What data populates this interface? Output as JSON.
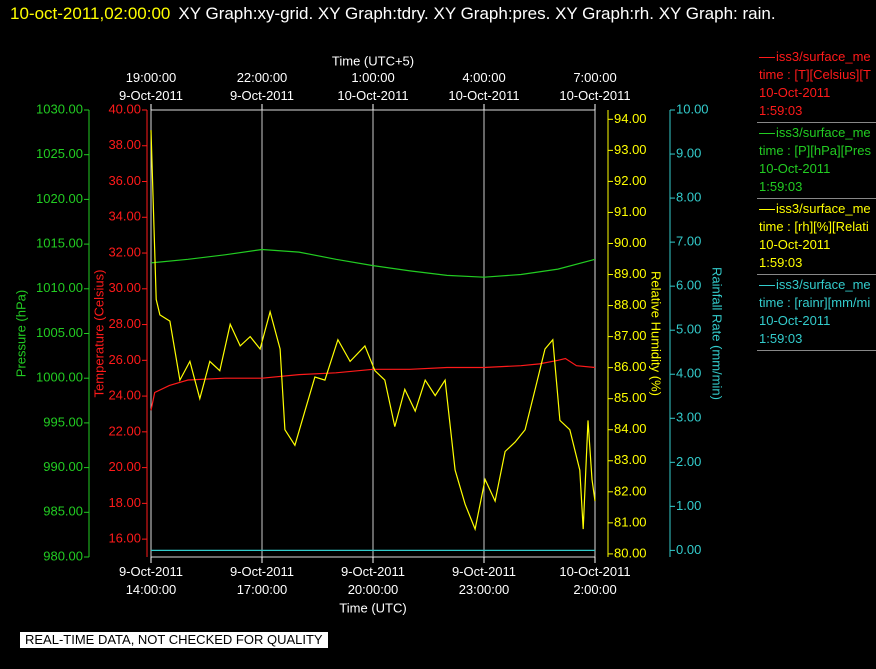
{
  "chart_data": {
    "type": "line",
    "timestamp": "10-oct-2011,02:00:00",
    "title": "XY Graph:xy-grid.  XY Graph:tdry.  XY Graph:pres.  XY Graph:rh.  XY Graph: rain.",
    "xlabel": "Time (UTC)",
    "x2label": "Time (UTC+5)",
    "xlim": [
      14,
      26
    ],
    "xticks": [
      {
        "value": 14,
        "label": "9-Oct-2011 14:00:00"
      },
      {
        "value": 17,
        "label": "9-Oct-2011 17:00:00"
      },
      {
        "value": 20,
        "label": "9-Oct-2011 20:00:00"
      },
      {
        "value": 23,
        "label": "9-Oct-2011 23:00:00"
      },
      {
        "value": 26,
        "label": "10-Oct-2011 2:00:00"
      }
    ],
    "x2ticks": [
      {
        "value": 14,
        "label": "19:00:00 9-Oct-2011"
      },
      {
        "value": 17,
        "label": "22:00:00 9-Oct-2011"
      },
      {
        "value": 20,
        "label": "1:00:00 10-Oct-2011"
      },
      {
        "value": 23,
        "label": "4:00:00 10-Oct-2011"
      },
      {
        "value": 26,
        "label": "7:00:00 10-Oct-2011"
      }
    ],
    "grid": true,
    "series": [
      {
        "name": "iss3/surface_me",
        "legend_detail": "time : [T][Celsius][T",
        "legend_date": "10-Oct-2011",
        "legend_time": "1:59:03",
        "color": "#ff1a1a",
        "ylabel": "Temperature (Celsius)",
        "ylim": [
          15,
          40
        ],
        "yticks": [
          {
            "value": 16,
            "label": "16.00"
          },
          {
            "value": 18,
            "label": "18.00"
          },
          {
            "value": 20,
            "label": "20.00"
          },
          {
            "value": 22,
            "label": "22.00"
          },
          {
            "value": 24,
            "label": "24.00"
          },
          {
            "value": 26,
            "label": "26.00"
          },
          {
            "value": 28,
            "label": "28.00"
          },
          {
            "value": 30,
            "label": "30.00"
          },
          {
            "value": 32,
            "label": "32.00"
          },
          {
            "value": 34,
            "label": "34.00"
          },
          {
            "value": 36,
            "label": "36.00"
          },
          {
            "value": 38,
            "label": "38.00"
          },
          {
            "value": 40,
            "label": "40.00"
          }
        ],
        "x": [
          14,
          14.1,
          14.5,
          15,
          16,
          17,
          18,
          19,
          20,
          21,
          22,
          23,
          24,
          24.5,
          25,
          25.2,
          25.5,
          26
        ],
        "values": [
          23.2,
          24.2,
          24.6,
          24.9,
          25,
          25,
          25.2,
          25.3,
          25.5,
          25.5,
          25.6,
          25.6,
          25.7,
          25.8,
          26,
          26.1,
          25.7,
          25.6
        ]
      },
      {
        "name": "iss3/surface_me",
        "legend_detail": "time : [P][hPa][Pres",
        "legend_date": "10-Oct-2011",
        "legend_time": "1:59:03",
        "color": "#22cc22",
        "ylabel": "Pressure (hPa)",
        "ylim": [
          980,
          1030
        ],
        "yticks": [
          {
            "value": 980,
            "label": "980.00"
          },
          {
            "value": 985,
            "label": "985.00"
          },
          {
            "value": 990,
            "label": "990.00"
          },
          {
            "value": 995,
            "label": "995.00"
          },
          {
            "value": 1000,
            "label": "1000.00"
          },
          {
            "value": 1005,
            "label": "1005.00"
          },
          {
            "value": 1010,
            "label": "1010.00"
          },
          {
            "value": 1015,
            "label": "1015.00"
          },
          {
            "value": 1020,
            "label": "1020.00"
          },
          {
            "value": 1025,
            "label": "1025.00"
          },
          {
            "value": 1030,
            "label": "1030.00"
          }
        ],
        "x": [
          14,
          15,
          16,
          17,
          18,
          19,
          20,
          21,
          22,
          23,
          24,
          25,
          26
        ],
        "values": [
          1012.9,
          1013.3,
          1013.8,
          1014.4,
          1014.1,
          1013.3,
          1012.6,
          1012.0,
          1011.5,
          1011.3,
          1011.6,
          1012.2,
          1013.3
        ]
      },
      {
        "name": "iss3/surface_me",
        "legend_detail": "time : [rh][%][Relati",
        "legend_date": "10-Oct-2011",
        "legend_time": "1:59:03",
        "color": "#ffff00",
        "ylabel": "Relative Humidity (%)",
        "ylim": [
          79.9,
          94.3
        ],
        "yticks": [
          {
            "value": 80,
            "label": "80.00"
          },
          {
            "value": 81,
            "label": "81.00"
          },
          {
            "value": 82,
            "label": "82.00"
          },
          {
            "value": 83,
            "label": "83.00"
          },
          {
            "value": 84,
            "label": "84.00"
          },
          {
            "value": 85,
            "label": "85.00"
          },
          {
            "value": 86,
            "label": "86.00"
          },
          {
            "value": 87,
            "label": "87.00"
          },
          {
            "value": 88,
            "label": "88.00"
          },
          {
            "value": 89,
            "label": "89.00"
          },
          {
            "value": 90,
            "label": "90.00"
          },
          {
            "value": 91,
            "label": "91.00"
          },
          {
            "value": 92,
            "label": "92.00"
          },
          {
            "value": 93,
            "label": "93.00"
          },
          {
            "value": 94,
            "label": "94.00"
          }
        ],
        "x": [
          14,
          14.14,
          14.24,
          14.51,
          14.78,
          15.05,
          15.32,
          15.59,
          15.86,
          16.14,
          16.41,
          16.68,
          16.95,
          17.22,
          17.49,
          17.62,
          17.89,
          18.16,
          18.43,
          18.7,
          19.05,
          19.38,
          19.78,
          20.05,
          20.32,
          20.59,
          20.86,
          21.14,
          21.41,
          21.68,
          21.95,
          22.22,
          22.49,
          22.76,
          23.03,
          23.3,
          23.57,
          23.84,
          24.11,
          24.38,
          24.65,
          24.86,
          25.05,
          25.32,
          25.59,
          25.68,
          25.81,
          25.92,
          26
        ],
        "values": [
          93.65,
          88.2,
          87.7,
          87.5,
          85.6,
          86.2,
          85.0,
          86.2,
          85.9,
          87.4,
          86.7,
          87.0,
          86.6,
          87.8,
          86.6,
          84.0,
          83.5,
          84.6,
          85.7,
          85.6,
          86.9,
          86.2,
          86.7,
          85.9,
          85.6,
          84.1,
          85.3,
          84.6,
          85.6,
          85.1,
          85.6,
          82.7,
          81.6,
          80.8,
          82.4,
          81.7,
          83.3,
          83.6,
          84.0,
          85.3,
          86.6,
          86.9,
          84.3,
          84.0,
          82.7,
          80.8,
          84.3,
          82.4,
          81.7
        ]
      },
      {
        "name": "iss3/surface_me",
        "legend_detail": "time : [rainr][mm/mi",
        "legend_date": "10-Oct-2011",
        "legend_time": "1:59:03",
        "color": "#33cccc",
        "ylabel": "Rainfall Rate (mm/min)",
        "ylim": [
          -0.15,
          10
        ],
        "yticks": [
          {
            "value": 0,
            "label": "0.00"
          },
          {
            "value": 1,
            "label": "1.00"
          },
          {
            "value": 2,
            "label": "2.00"
          },
          {
            "value": 3,
            "label": "3.00"
          },
          {
            "value": 4,
            "label": "4.00"
          },
          {
            "value": 5,
            "label": "5.00"
          },
          {
            "value": 6,
            "label": "6.00"
          },
          {
            "value": 7,
            "label": "7.00"
          },
          {
            "value": 8,
            "label": "8.00"
          },
          {
            "value": 9,
            "label": "9.00"
          },
          {
            "value": 10,
            "label": "10.00"
          }
        ],
        "x": [
          14,
          26
        ],
        "values": [
          0,
          0
        ]
      }
    ],
    "footer": "REAL-TIME DATA, NOT CHECKED FOR QUALITY"
  }
}
